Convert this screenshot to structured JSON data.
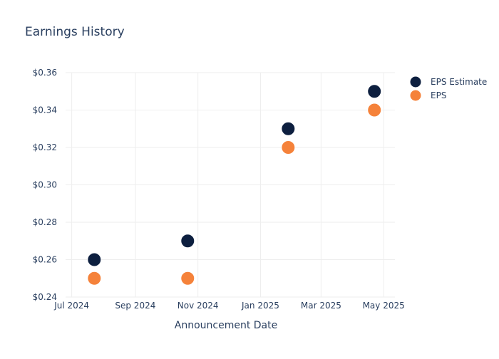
{
  "chart_data": {
    "type": "scatter",
    "title": "Earnings History",
    "xlabel": "Announcement Date",
    "ylabel": "",
    "x_axis_type": "date",
    "xlim": [
      "2024-06-25",
      "2025-05-12"
    ],
    "ylim": [
      0.24,
      0.36
    ],
    "x_ticks": [
      {
        "value": "2024-07-01",
        "label": "Jul 2024"
      },
      {
        "value": "2024-09-01",
        "label": "Sep 2024"
      },
      {
        "value": "2024-11-01",
        "label": "Nov 2024"
      },
      {
        "value": "2025-01-01",
        "label": "Jan 2025"
      },
      {
        "value": "2025-03-01",
        "label": "Mar 2025"
      },
      {
        "value": "2025-05-01",
        "label": "May 2025"
      }
    ],
    "y_ticks": [
      {
        "value": 0.24,
        "label": "$0.24"
      },
      {
        "value": 0.26,
        "label": "$0.26"
      },
      {
        "value": 0.28,
        "label": "$0.28"
      },
      {
        "value": 0.3,
        "label": "$0.30"
      },
      {
        "value": 0.32,
        "label": "$0.32"
      },
      {
        "value": 0.34,
        "label": "$0.34"
      },
      {
        "value": 0.36,
        "label": "$0.36"
      }
    ],
    "grid": true,
    "legend_position": "top-right",
    "series": [
      {
        "name": "EPS Estimate",
        "color": "#0d1f3f",
        "points": [
          {
            "x": "2024-07-23",
            "y": 0.26
          },
          {
            "x": "2024-10-22",
            "y": 0.27
          },
          {
            "x": "2025-01-28",
            "y": 0.33
          },
          {
            "x": "2025-04-22",
            "y": 0.35
          }
        ]
      },
      {
        "name": "EPS",
        "color": "#f5823a",
        "points": [
          {
            "x": "2024-07-23",
            "y": 0.25
          },
          {
            "x": "2024-10-22",
            "y": 0.25
          },
          {
            "x": "2025-01-28",
            "y": 0.32
          },
          {
            "x": "2025-04-22",
            "y": 0.34
          }
        ]
      }
    ]
  }
}
